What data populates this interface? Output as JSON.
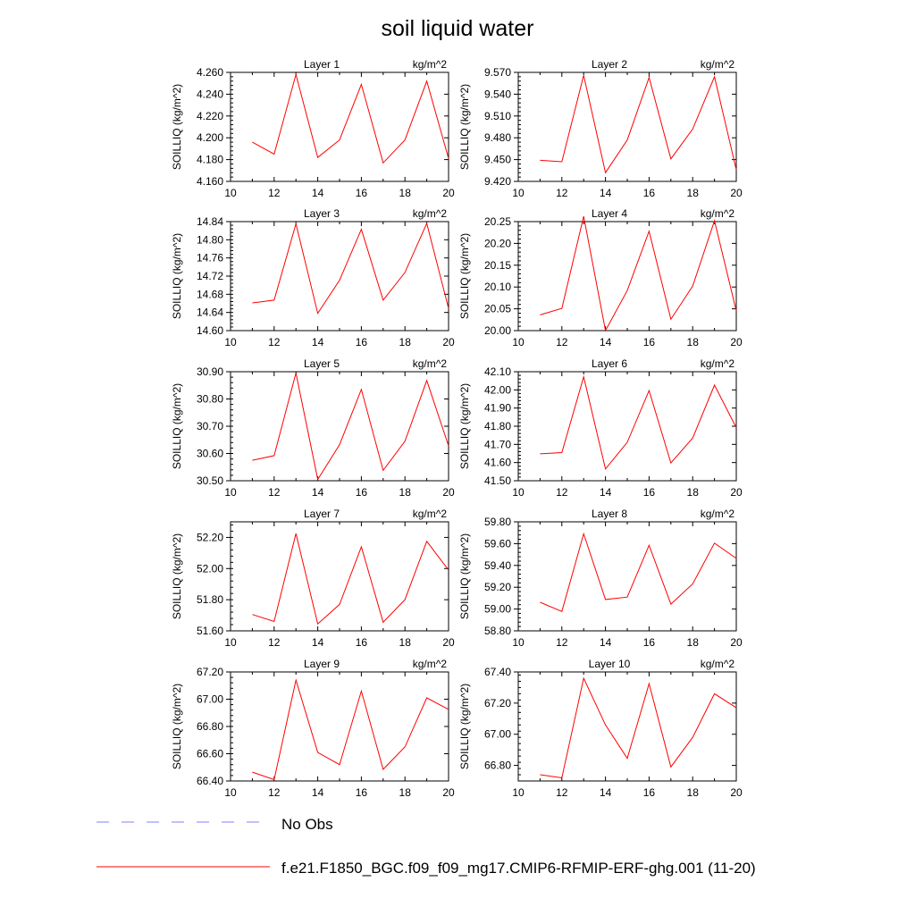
{
  "chart_data": {
    "type": "line",
    "title": "soil liquid water",
    "ylabel": "SOILLIQ  (kg/m^2)",
    "x_ticks": [
      10,
      12,
      14,
      16,
      18,
      20
    ],
    "xlim": [
      10,
      20
    ],
    "grid": false,
    "legend": {
      "placement": "bottom",
      "entries": [
        {
          "label": "No Obs",
          "color": "#8080ff",
          "style": "dashed"
        },
        {
          "label": "f.e21.F1850_BGC.f09_f09_mg17.CMIP6-RFMIP-ERF-ghg.001 (11-20)",
          "color": "#ff0000",
          "style": "solid"
        }
      ]
    },
    "x": [
      11,
      12,
      13,
      14,
      15,
      16,
      17,
      18,
      19,
      20
    ],
    "panels": [
      {
        "title": "Layer 1",
        "units": "kg/m^2",
        "ylim": [
          4.16,
          4.26
        ],
        "yticks": [
          "4.160",
          "4.180",
          "4.200",
          "4.220",
          "4.240",
          "4.260"
        ],
        "values": [
          4.196,
          4.185,
          4.258,
          4.182,
          4.198,
          4.249,
          4.177,
          4.198,
          4.252,
          4.181
        ]
      },
      {
        "title": "Layer 2",
        "units": "kg/m^2",
        "ylim": [
          9.42,
          9.57
        ],
        "yticks": [
          "9.420",
          "9.450",
          "9.480",
          "9.510",
          "9.540",
          "9.570"
        ],
        "values": [
          9.449,
          9.447,
          9.566,
          9.432,
          9.477,
          9.563,
          9.451,
          9.492,
          9.564,
          9.436
        ]
      },
      {
        "title": "Layer 3",
        "units": "kg/m^2",
        "ylim": [
          14.6,
          14.84
        ],
        "yticks": [
          "14.60",
          "14.64",
          "14.68",
          "14.72",
          "14.76",
          "14.80",
          "14.84"
        ],
        "values": [
          14.661,
          14.667,
          14.835,
          14.638,
          14.711,
          14.823,
          14.667,
          14.728,
          14.836,
          14.649
        ]
      },
      {
        "title": "Layer 4",
        "units": "kg/m^2",
        "ylim": [
          20.0,
          20.25
        ],
        "yticks": [
          "20.00",
          "20.05",
          "20.10",
          "20.15",
          "20.20",
          "20.25"
        ],
        "values": [
          20.036,
          20.051,
          20.262,
          20.0,
          20.092,
          20.228,
          20.026,
          20.102,
          20.252,
          20.045
        ]
      },
      {
        "title": "Layer 5",
        "units": "kg/m^2",
        "ylim": [
          30.5,
          30.9
        ],
        "yticks": [
          "30.50",
          "30.60",
          "30.70",
          "30.80",
          "30.90"
        ],
        "values": [
          30.575,
          30.592,
          30.895,
          30.505,
          30.632,
          30.835,
          30.538,
          30.645,
          30.868,
          30.628
        ]
      },
      {
        "title": "Layer 6",
        "units": "kg/m^2",
        "ylim": [
          41.5,
          42.1
        ],
        "yticks": [
          "41.50",
          "41.60",
          "41.70",
          "41.80",
          "41.90",
          "42.00",
          "42.10"
        ],
        "values": [
          41.648,
          41.655,
          42.072,
          41.565,
          41.712,
          41.996,
          41.598,
          41.735,
          42.026,
          41.792
        ]
      },
      {
        "title": "Layer 7",
        "units": "kg/m^2",
        "ylim": [
          51.6,
          52.3
        ],
        "yticks": [
          "51.60",
          "51.80",
          "52.00",
          "52.20"
        ],
        "values": [
          51.705,
          51.66,
          52.225,
          51.645,
          51.77,
          52.14,
          51.655,
          51.8,
          52.175,
          51.99
        ]
      },
      {
        "title": "Layer 8",
        "units": "kg/m^2",
        "ylim": [
          58.8,
          59.8
        ],
        "yticks": [
          "58.80",
          "59.00",
          "59.20",
          "59.40",
          "59.60",
          "59.80"
        ],
        "values": [
          59.062,
          58.978,
          59.69,
          59.088,
          59.11,
          59.585,
          59.045,
          59.23,
          59.605,
          59.465
        ]
      },
      {
        "title": "Layer 9",
        "units": "kg/m^2",
        "ylim": [
          66.4,
          67.2
        ],
        "yticks": [
          "66.40",
          "66.60",
          "66.80",
          "67.00",
          "67.20"
        ],
        "values": [
          66.465,
          66.41,
          67.14,
          66.61,
          66.52,
          67.06,
          66.485,
          66.65,
          67.01,
          66.925
        ]
      },
      {
        "title": "Layer 10",
        "units": "kg/m^2",
        "ylim": [
          66.7,
          67.4
        ],
        "yticks": [
          "66.80",
          "67.00",
          "67.20",
          "67.40"
        ],
        "values": [
          66.74,
          66.72,
          67.36,
          67.06,
          66.845,
          67.325,
          66.79,
          66.98,
          67.26,
          67.17
        ]
      }
    ]
  }
}
